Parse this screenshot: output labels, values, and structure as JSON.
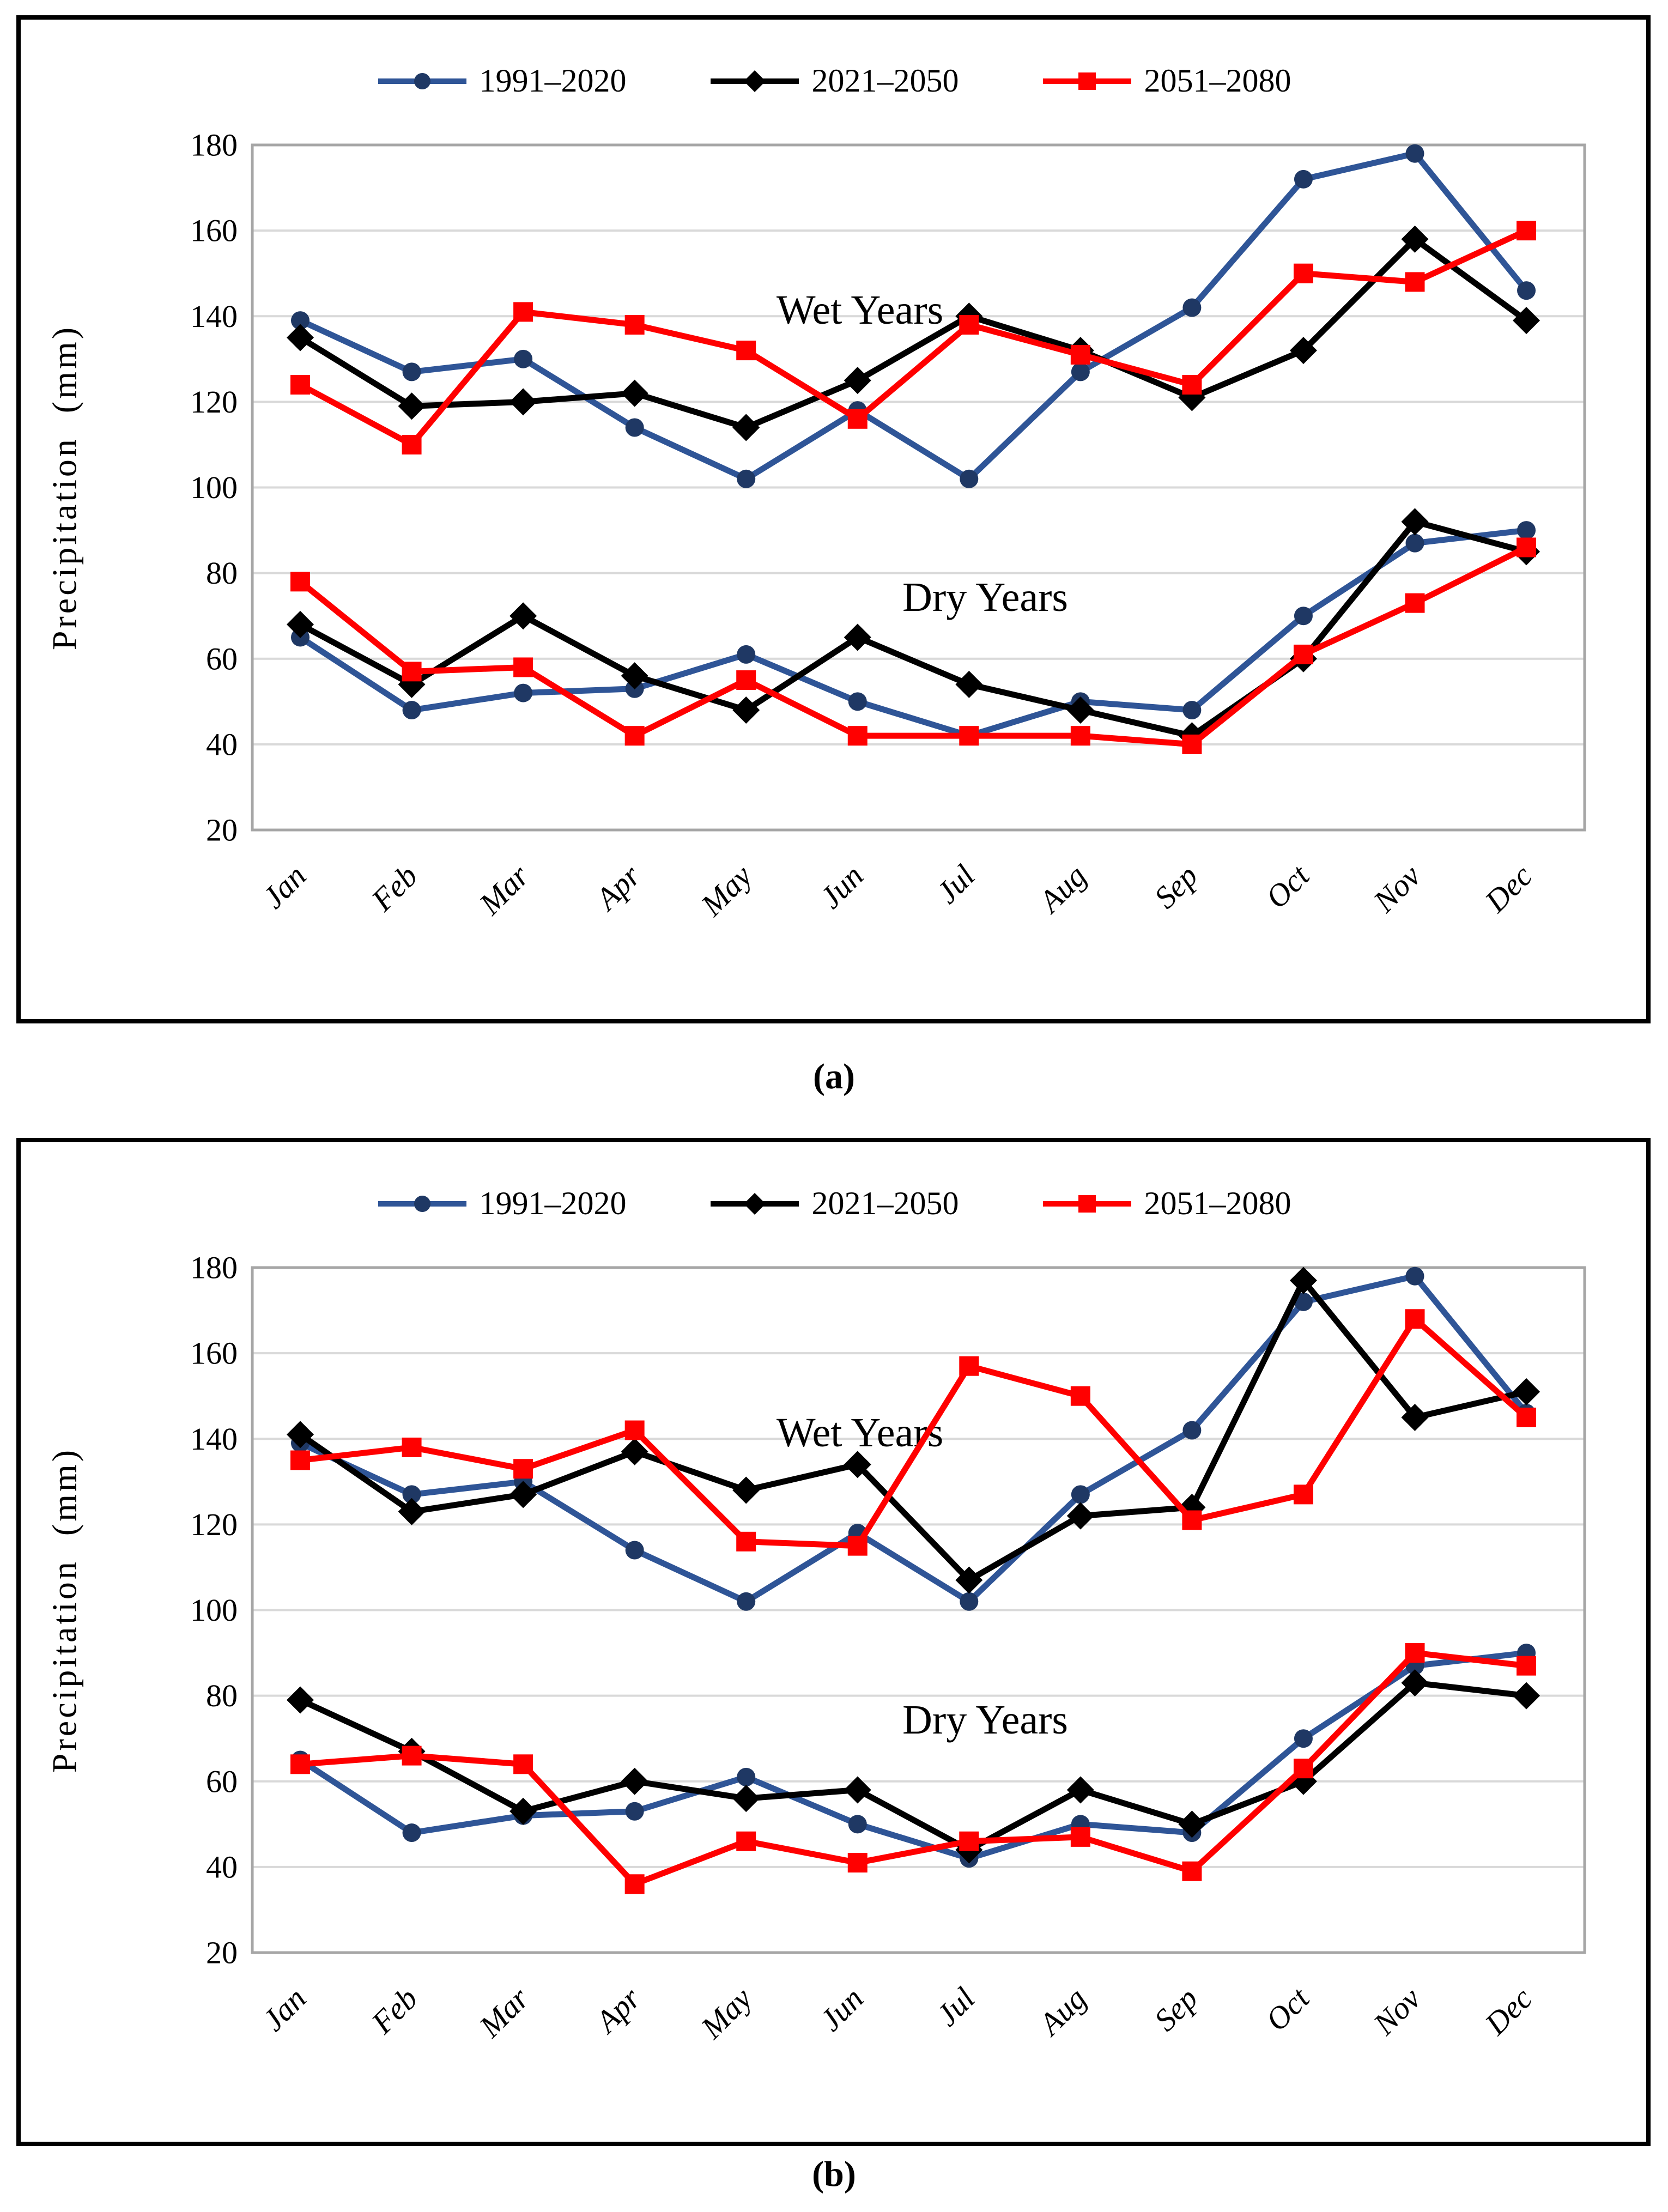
{
  "chart_data": [
    {
      "panel_label": "(a)",
      "type": "line",
      "title": "",
      "xlabel": "",
      "ylabel": "Precipitation (mm)",
      "ylim": [
        20,
        180
      ],
      "ytick_step": 20,
      "grid": "horizontal",
      "legend_position": "top",
      "categories": [
        "Jan",
        "Feb",
        "Mar",
        "Apr",
        "May",
        "Jun",
        "Jul",
        "Aug",
        "Sep",
        "Oct",
        "Nov",
        "Dec"
      ],
      "annotations": [
        {
          "text": "Wet Years"
        },
        {
          "text": "Dry Years"
        }
      ],
      "legend": [
        {
          "label": "1991–2020",
          "line_color": "#2F5597",
          "marker_color": "#1F3864",
          "marker": "circle"
        },
        {
          "label": "2021–2050",
          "line_color": "#000000",
          "marker_color": "#000000",
          "marker": "diamond"
        },
        {
          "label": "2051–2080",
          "line_color": "#FF0000",
          "marker_color": "#FF0000",
          "marker": "square"
        }
      ],
      "series": [
        {
          "name": "1991–2020",
          "group": "Wet Years",
          "marker": "circle",
          "line_color": "#2F5597",
          "marker_color": "#1F3864",
          "values": [
            139,
            127,
            130,
            114,
            102,
            118,
            102,
            127,
            142,
            172,
            178,
            146
          ]
        },
        {
          "name": "2021–2050",
          "group": "Wet Years",
          "marker": "diamond",
          "line_color": "#000000",
          "marker_color": "#000000",
          "values": [
            135,
            119,
            120,
            122,
            114,
            125,
            140,
            132,
            121,
            132,
            158,
            139
          ]
        },
        {
          "name": "2051–2080",
          "group": "Wet Years",
          "marker": "square",
          "line_color": "#FF0000",
          "marker_color": "#FF0000",
          "values": [
            124,
            110,
            141,
            138,
            132,
            116,
            138,
            131,
            124,
            150,
            148,
            160
          ]
        },
        {
          "name": "1991–2020",
          "group": "Dry Years",
          "marker": "circle",
          "line_color": "#2F5597",
          "marker_color": "#1F3864",
          "values": [
            65,
            48,
            52,
            53,
            61,
            50,
            42,
            50,
            48,
            70,
            87,
            90
          ]
        },
        {
          "name": "2021–2050",
          "group": "Dry Years",
          "marker": "diamond",
          "line_color": "#000000",
          "marker_color": "#000000",
          "values": [
            68,
            54,
            70,
            56,
            48,
            65,
            54,
            48,
            42,
            60,
            92,
            85
          ]
        },
        {
          "name": "2051–2080",
          "group": "Dry Years",
          "marker": "square",
          "line_color": "#FF0000",
          "marker_color": "#FF0000",
          "values": [
            78,
            57,
            58,
            42,
            55,
            42,
            42,
            42,
            40,
            61,
            73,
            86
          ]
        }
      ]
    },
    {
      "panel_label": "(b)",
      "type": "line",
      "title": "",
      "xlabel": "",
      "ylabel": "Precipitation (mm)",
      "ylim": [
        20,
        180
      ],
      "ytick_step": 20,
      "grid": "horizontal",
      "legend_position": "top",
      "categories": [
        "Jan",
        "Feb",
        "Mar",
        "Apr",
        "May",
        "Jun",
        "Jul",
        "Aug",
        "Sep",
        "Oct",
        "Nov",
        "Dec"
      ],
      "annotations": [
        {
          "text": "Wet Years"
        },
        {
          "text": "Dry Years"
        }
      ],
      "legend": [
        {
          "label": "1991–2020",
          "line_color": "#2F5597",
          "marker_color": "#1F3864",
          "marker": "circle"
        },
        {
          "label": "2021–2050",
          "line_color": "#000000",
          "marker_color": "#000000",
          "marker": "diamond"
        },
        {
          "label": "2051–2080",
          "line_color": "#FF0000",
          "marker_color": "#FF0000",
          "marker": "square"
        }
      ],
      "series": [
        {
          "name": "1991–2020",
          "group": "Wet Years",
          "marker": "circle",
          "line_color": "#2F5597",
          "marker_color": "#1F3864",
          "values": [
            139,
            127,
            130,
            114,
            102,
            118,
            102,
            127,
            142,
            172,
            178,
            146
          ]
        },
        {
          "name": "2021–2050",
          "group": "Wet Years",
          "marker": "diamond",
          "line_color": "#000000",
          "marker_color": "#000000",
          "values": [
            141,
            123,
            127,
            137,
            128,
            134,
            107,
            122,
            124,
            177,
            145,
            151
          ]
        },
        {
          "name": "2051–2080",
          "group": "Wet Years",
          "marker": "square",
          "line_color": "#FF0000",
          "marker_color": "#FF0000",
          "values": [
            135,
            138,
            133,
            142,
            116,
            115,
            157,
            150,
            121,
            127,
            168,
            145
          ]
        },
        {
          "name": "1991–2020",
          "group": "Dry Years",
          "marker": "circle",
          "line_color": "#2F5597",
          "marker_color": "#1F3864",
          "values": [
            65,
            48,
            52,
            53,
            61,
            50,
            42,
            50,
            48,
            70,
            87,
            90
          ]
        },
        {
          "name": "2021–2050",
          "group": "Dry Years",
          "marker": "diamond",
          "line_color": "#000000",
          "marker_color": "#000000",
          "values": [
            79,
            67,
            53,
            60,
            56,
            58,
            44,
            58,
            50,
            60,
            83,
            80
          ]
        },
        {
          "name": "2051–2080",
          "group": "Dry Years",
          "marker": "square",
          "line_color": "#FF0000",
          "marker_color": "#FF0000",
          "values": [
            64,
            66,
            64,
            36,
            46,
            41,
            46,
            47,
            39,
            63,
            90,
            87
          ]
        }
      ]
    }
  ],
  "style": {
    "gridline_color": "#D9D9D9",
    "frame_color": "#A6A6A6",
    "text_color": "#000000",
    "background": "#FFFFFF"
  }
}
